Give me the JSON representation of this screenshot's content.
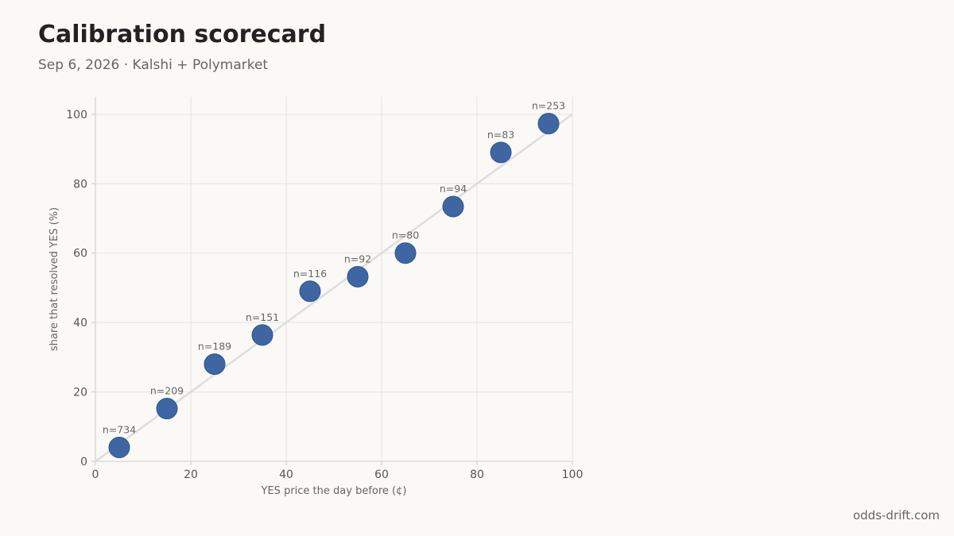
{
  "header": {
    "title": "Calibration scorecard",
    "subtitle": "Sep 6, 2026 · Kalshi + Polymarket"
  },
  "footer": {
    "source": "odds-drift.com"
  },
  "colors": {
    "point": "#3f66a3",
    "point_edge": "#2f5590",
    "diagonal": "#dddddd",
    "grid": "#e6e4df",
    "axis": "#cccccc"
  },
  "chart_data": {
    "type": "scatter",
    "title": "Calibration scorecard",
    "subtitle": "Sep 6, 2026 · Kalshi + Polymarket",
    "xlabel": "YES price the day before (¢)",
    "ylabel": "share that resolved YES (%)",
    "xlim": [
      0,
      100
    ],
    "ylim": [
      0,
      105
    ],
    "xticks": [
      0,
      20,
      40,
      60,
      80,
      100
    ],
    "yticks": [
      0,
      20,
      40,
      60,
      80,
      100
    ],
    "grid": true,
    "reference_line": {
      "from": [
        0,
        0
      ],
      "to": [
        100,
        100
      ]
    },
    "points": [
      {
        "x": 5,
        "y": 4,
        "label": "n=734"
      },
      {
        "x": 15,
        "y": 15.2,
        "label": "n=209"
      },
      {
        "x": 25,
        "y": 28,
        "label": "n=189"
      },
      {
        "x": 35,
        "y": 36.4,
        "label": "n=151"
      },
      {
        "x": 45,
        "y": 49,
        "label": "n=116"
      },
      {
        "x": 55,
        "y": 53.2,
        "label": "n=92"
      },
      {
        "x": 65,
        "y": 60,
        "label": "n=80"
      },
      {
        "x": 75,
        "y": 73.4,
        "label": "n=94"
      },
      {
        "x": 85,
        "y": 89,
        "label": "n=83"
      },
      {
        "x": 95,
        "y": 97.3,
        "label": "n=253"
      }
    ]
  }
}
